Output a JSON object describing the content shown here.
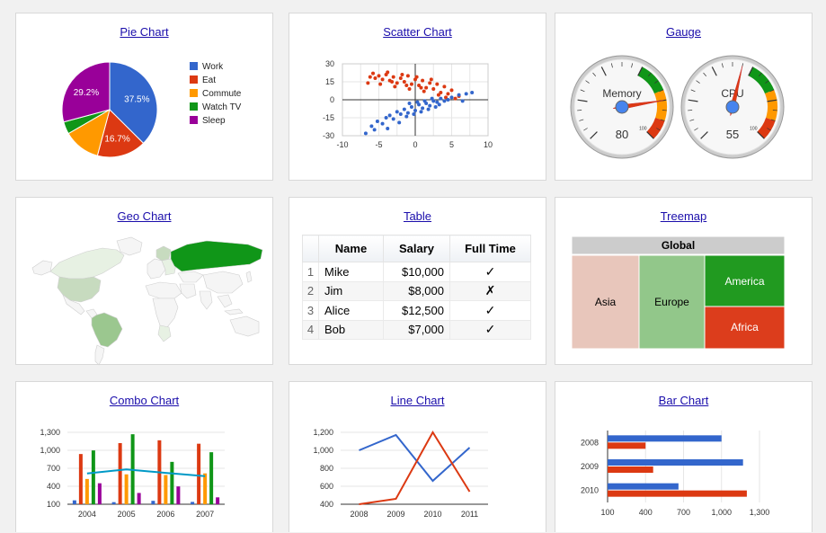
{
  "cards": {
    "pie": "Pie Chart",
    "scatter": "Scatter Chart",
    "gauge": "Gauge",
    "geo": "Geo Chart",
    "table": "Table",
    "treemap": "Treemap",
    "combo": "Combo Chart",
    "line": "Line Chart",
    "bar": "Bar Chart"
  },
  "table": {
    "headers": [
      "Name",
      "Salary",
      "Full Time"
    ],
    "rows": [
      {
        "num": "1",
        "name": "Mike",
        "salary": "$10,000",
        "full_time": "✓"
      },
      {
        "num": "2",
        "name": "Jim",
        "salary": "$8,000",
        "full_time": "✗"
      },
      {
        "num": "3",
        "name": "Alice",
        "salary": "$12,500",
        "full_time": "✓"
      },
      {
        "num": "4",
        "name": "Bob",
        "salary": "$7,000",
        "full_time": "✓"
      }
    ]
  },
  "treemap": {
    "root": "Global",
    "regions": [
      "Asia",
      "Europe",
      "America",
      "Africa"
    ],
    "colors": {
      "Asia": "#e8c6bb",
      "Europe": "#92c78a",
      "America": "#219a20",
      "Africa": "#dc3d1c",
      "root": "#cccccc"
    }
  },
  "chart_data": [
    {
      "type": "pie",
      "title": "Pie Chart",
      "legend": "right",
      "slices": [
        {
          "label": "Work",
          "value": 37.5,
          "color": "#3366cc"
        },
        {
          "label": "Eat",
          "value": 16.7,
          "color": "#dc3912"
        },
        {
          "label": "Commute",
          "value": 12.5,
          "color": "#ff9900"
        },
        {
          "label": "Watch TV",
          "value": 4.2,
          "color": "#109618"
        },
        {
          "label": "Sleep",
          "value": 29.2,
          "color": "#990099"
        }
      ],
      "slice_labels": [
        "37.5%",
        "16.7%",
        "29.2%"
      ]
    },
    {
      "type": "scatter",
      "title": "Scatter Chart",
      "xlim": [
        -10,
        10
      ],
      "ylim": [
        -30,
        30
      ],
      "xticks": [
        "-10",
        "-5",
        "0",
        "5",
        "10"
      ],
      "yticks": [
        "30",
        "15",
        "0",
        "-15",
        "-30"
      ],
      "grid": true,
      "series": [
        {
          "color": "#dc3912",
          "points": [
            [
              -6.2,
              19
            ],
            [
              -5.5,
              18
            ],
            [
              -5,
              20
            ],
            [
              -4.5,
              17
            ],
            [
              -4,
              21
            ],
            [
              -3.5,
              16
            ],
            [
              -3,
              19
            ],
            [
              -2.5,
              14
            ],
            [
              -2,
              18
            ],
            [
              -1.5,
              15
            ],
            [
              -1,
              20
            ],
            [
              -0.5,
              13
            ],
            [
              0,
              17
            ],
            [
              0.5,
              12
            ],
            [
              1,
              16
            ],
            [
              1.5,
              10
            ],
            [
              2,
              14
            ],
            [
              2.5,
              9
            ],
            [
              3,
              13
            ],
            [
              3.5,
              6
            ],
            [
              4,
              11
            ],
            [
              4.5,
              5
            ],
            [
              5,
              8
            ],
            [
              6,
              3
            ],
            [
              -6.5,
              14
            ],
            [
              -5.8,
              22
            ],
            [
              -4.8,
              13
            ],
            [
              -3.8,
              23
            ],
            [
              -2.8,
              11
            ],
            [
              -1.8,
              21
            ],
            [
              -0.8,
              9
            ],
            [
              0.2,
              19
            ],
            [
              1.2,
              7
            ],
            [
              2.2,
              17
            ],
            [
              3.2,
              4
            ],
            [
              4.2,
              2
            ],
            [
              5.5,
              1
            ],
            [
              -3.2,
              15
            ],
            [
              -1.2,
              12
            ],
            [
              0.8,
              10
            ]
          ]
        },
        {
          "color": "#3366cc",
          "points": [
            [
              -6.8,
              -28
            ],
            [
              -6,
              -22
            ],
            [
              -5.2,
              -18
            ],
            [
              -4.5,
              -20
            ],
            [
              -4,
              -15
            ],
            [
              -3.5,
              -13
            ],
            [
              -3,
              -16
            ],
            [
              -2.5,
              -10
            ],
            [
              -2,
              -12
            ],
            [
              -1.5,
              -8
            ],
            [
              -1,
              -11
            ],
            [
              -0.5,
              -6
            ],
            [
              0,
              -9
            ],
            [
              0.5,
              -4
            ],
            [
              1,
              -7
            ],
            [
              1.5,
              -3
            ],
            [
              2,
              -5
            ],
            [
              2.5,
              -1
            ],
            [
              3,
              -2
            ],
            [
              3.5,
              1
            ],
            [
              4,
              -1
            ],
            [
              5,
              2
            ],
            [
              6,
              4
            ],
            [
              7,
              5
            ],
            [
              7.8,
              6
            ],
            [
              -2.2,
              -19
            ],
            [
              -1.2,
              -14
            ],
            [
              -0.2,
              -12
            ],
            [
              0.8,
              -10
            ],
            [
              1.8,
              -8
            ],
            [
              2.8,
              -6
            ],
            [
              -3.8,
              -24
            ],
            [
              -5.6,
              -25
            ],
            [
              0.3,
              -2
            ],
            [
              1.3,
              -1
            ],
            [
              2.3,
              1
            ],
            [
              -0.8,
              -3
            ],
            [
              3.3,
              -4
            ],
            [
              4.5,
              0
            ],
            [
              6.5,
              -1
            ]
          ]
        }
      ]
    },
    {
      "type": "gauge",
      "title": "Gauge",
      "gauges": [
        {
          "label": "Memory",
          "value": 80,
          "min": 0,
          "max": 100
        },
        {
          "label": "CPU",
          "value": 55,
          "min": 0,
          "max": 100
        }
      ],
      "max_label": "100",
      "zones": [
        {
          "from": 75,
          "to": 90,
          "color": "#ff9900"
        },
        {
          "from": 90,
          "to": 100,
          "color": "#dc3912"
        }
      ],
      "green_zone": {
        "from": 60,
        "to": 75,
        "color": "#109618"
      }
    },
    {
      "type": "bar",
      "title": "Combo Chart",
      "categories": [
        "2004",
        "2005",
        "2006",
        "2007"
      ],
      "yticks": [
        "1,300",
        "1,000",
        "700",
        "400",
        "100"
      ],
      "ylim": [
        100,
        1300
      ],
      "series": [
        {
          "color": "#3366cc",
          "values": [
            165,
            135,
            157,
            139
          ]
        },
        {
          "color": "#dc3912",
          "values": [
            938,
            1120,
            1167,
            1110
          ]
        },
        {
          "color": "#ff9900",
          "values": [
            522,
            599,
            587,
            615
          ]
        },
        {
          "color": "#109618",
          "values": [
            998,
            1268,
            807,
            968
          ]
        },
        {
          "color": "#990099",
          "values": [
            450,
            288,
            397,
            215
          ]
        }
      ],
      "line": {
        "color": "#0099c6",
        "values": [
          614.6,
          682,
          623,
          569.6
        ]
      }
    },
    {
      "type": "line",
      "title": "Line Chart",
      "categories": [
        "2008",
        "2009",
        "2010",
        "2011"
      ],
      "yticks": [
        "1,200",
        "1,000",
        "800",
        "600",
        "400"
      ],
      "ylim": [
        400,
        1200
      ],
      "series": [
        {
          "color": "#3366cc",
          "values": [
            1000,
            1170,
            660,
            1030
          ]
        },
        {
          "color": "#dc3912",
          "values": [
            400,
            460,
            1200,
            540
          ]
        }
      ]
    },
    {
      "type": "bar",
      "title": "Bar Chart",
      "orientation": "horizontal",
      "categories": [
        "2008",
        "2009",
        "2010"
      ],
      "xticks": [
        "100",
        "400",
        "700",
        "1,000",
        "1,300"
      ],
      "xlim": [
        100,
        1300
      ],
      "series": [
        {
          "color": "#3366cc",
          "values": [
            1000,
            1170,
            660
          ]
        },
        {
          "color": "#dc3912",
          "values": [
            400,
            460,
            1200
          ]
        }
      ]
    }
  ]
}
